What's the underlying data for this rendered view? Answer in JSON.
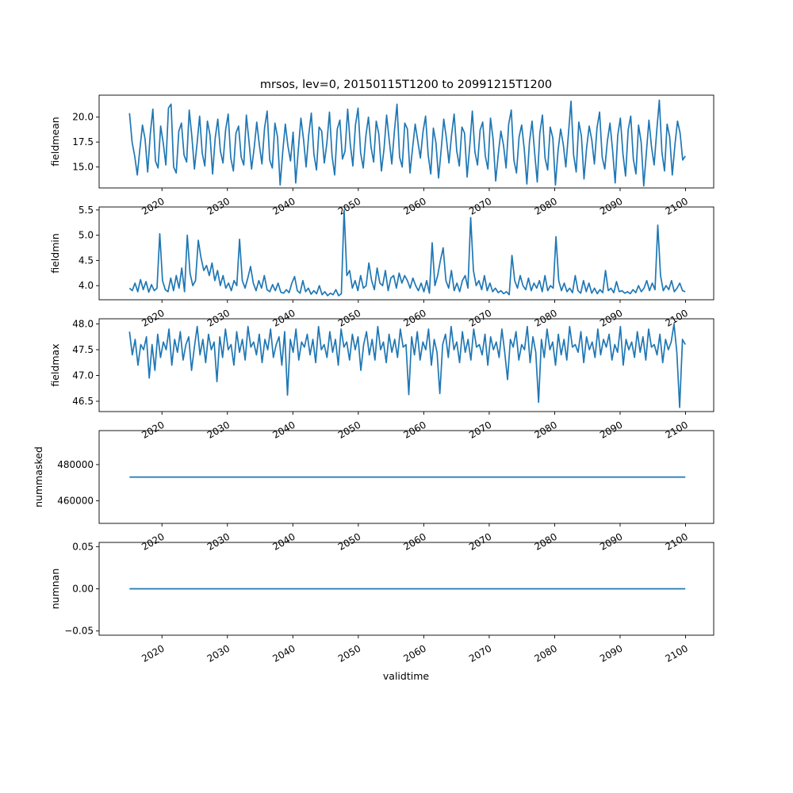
{
  "figure": {
    "title": "mrsos, lev=0, 20150115T1200 to 20991215T1200",
    "xlabel": "validtime",
    "line_color": "#1f77b4"
  },
  "chart_data": [
    {
      "type": "line",
      "ylabel": "fieldmean",
      "xlim": [
        2010.4,
        2104.3
      ],
      "ylim": [
        12.9,
        22.2
      ],
      "x_ticks": [
        2020,
        2030,
        2040,
        2050,
        2060,
        2070,
        2080,
        2090,
        2100
      ],
      "x_tick_labels": [
        "2020",
        "2030",
        "2040",
        "2050",
        "2060",
        "2070",
        "2080",
        "2090",
        "2100"
      ],
      "y_ticks": [
        15.0,
        17.5,
        20.0
      ],
      "y_tick_labels": [
        "15.0",
        "17.5",
        "20.0"
      ],
      "series": [
        {
          "x_start": 2015.04,
          "x_end": 2099.96,
          "values": [
            20.4,
            17.5,
            16.1,
            14.2,
            16.8,
            19.2,
            17.8,
            14.5,
            18.3,
            20.8,
            15.6,
            14.9,
            19.1,
            17.4,
            15.2,
            20.9,
            21.3,
            15.0,
            14.4,
            18.6,
            19.4,
            16.2,
            15.5,
            20.7,
            18.1,
            14.8,
            17.3,
            20.1,
            16.4,
            15.1,
            19.6,
            18.2,
            14.3,
            17.9,
            19.8,
            16.6,
            15.4,
            18.7,
            20.3,
            15.9,
            14.6,
            18.4,
            19.1,
            16.0,
            15.2,
            20.2,
            17.6,
            14.8,
            16.9,
            19.5,
            17.2,
            15.3,
            18.9,
            20.6,
            15.7,
            14.9,
            19.4,
            18.0,
            13.2,
            16.5,
            19.3,
            17.1,
            15.6,
            18.5,
            13.4,
            16.7,
            19.9,
            17.8,
            15.0,
            18.2,
            20.4,
            16.3,
            14.7,
            19.0,
            18.6,
            15.4,
            17.4,
            20.5,
            16.1,
            14.2,
            18.8,
            19.7,
            15.8,
            16.6,
            20.8,
            17.3,
            15.1,
            19.2,
            20.9,
            16.4,
            14.9,
            18.1,
            20.0,
            17.0,
            15.5,
            19.6,
            18.3,
            14.6,
            16.8,
            20.2,
            17.7,
            15.3,
            18.6,
            21.3,
            16.0,
            15.0,
            19.4,
            18.8,
            14.4,
            16.9,
            19.3,
            17.6,
            15.9,
            18.5,
            20.1,
            16.2,
            14.3,
            18.9,
            17.4,
            13.9,
            16.7,
            19.8,
            17.9,
            15.4,
            18.2,
            20.3,
            16.6,
            15.1,
            19.0,
            18.4,
            14.0,
            17.1,
            20.6,
            16.5,
            15.2,
            18.7,
            19.5,
            16.1,
            14.8,
            19.9,
            17.8,
            13.6,
            16.3,
            18.6,
            17.2,
            14.9,
            19.3,
            20.7,
            15.7,
            14.4,
            18.0,
            19.2,
            16.8,
            13.3,
            17.5,
            19.6,
            16.4,
            13.5,
            18.4,
            20.2,
            15.9,
            14.7,
            19.0,
            17.9,
            13.2,
            16.6,
            18.8,
            17.3,
            15.0,
            18.3,
            21.6,
            16.2,
            14.5,
            19.5,
            18.1,
            13.8,
            16.9,
            19.1,
            17.7,
            15.3,
            18.9,
            20.5,
            16.0,
            14.8,
            17.6,
            19.4,
            16.7,
            13.4,
            18.2,
            19.9,
            16.3,
            14.1,
            18.7,
            20.1,
            15.8,
            14.3,
            19.2,
            17.5,
            13.1,
            16.4,
            19.7,
            17.0,
            15.2,
            18.6,
            21.7,
            16.5,
            14.6,
            19.3,
            18.0,
            14.2,
            17.2,
            19.6,
            18.4,
            15.7,
            16.1
          ]
        }
      ]
    },
    {
      "type": "line",
      "ylabel": "fieldmin",
      "xlim": [
        2010.4,
        2104.3
      ],
      "ylim": [
        3.72,
        5.56
      ],
      "x_ticks": [
        2020,
        2030,
        2040,
        2050,
        2060,
        2070,
        2080,
        2090,
        2100
      ],
      "x_tick_labels": [
        "2020",
        "2030",
        "2040",
        "2050",
        "2060",
        "2070",
        "2080",
        "2090",
        "2100"
      ],
      "y_ticks": [
        4.0,
        4.5,
        5.0,
        5.5
      ],
      "y_tick_labels": [
        "4.0",
        "4.5",
        "5.0",
        "5.5"
      ],
      "series": [
        {
          "x_start": 2015.04,
          "x_end": 2099.96,
          "values": [
            3.95,
            3.9,
            4.05,
            3.88,
            4.12,
            3.92,
            4.08,
            3.87,
            4.02,
            3.9,
            3.95,
            5.03,
            4.1,
            3.92,
            3.88,
            4.15,
            3.9,
            4.2,
            3.95,
            4.35,
            3.88,
            5.0,
            4.25,
            4.0,
            4.1,
            4.9,
            4.55,
            4.3,
            4.4,
            4.2,
            4.45,
            4.1,
            4.3,
            4.0,
            4.2,
            3.95,
            4.05,
            3.9,
            4.1,
            4.0,
            4.92,
            4.1,
            3.95,
            4.15,
            4.38,
            4.05,
            3.9,
            4.1,
            3.95,
            4.2,
            3.92,
            3.88,
            4.02,
            3.9,
            4.05,
            3.87,
            3.85,
            3.92,
            3.86,
            4.05,
            4.18,
            3.9,
            3.85,
            4.1,
            3.88,
            3.95,
            3.83,
            3.9,
            3.84,
            4.0,
            3.82,
            3.88,
            3.8,
            3.85,
            3.82,
            3.92,
            3.8,
            3.84,
            5.5,
            4.2,
            4.3,
            3.95,
            4.1,
            3.9,
            4.2,
            3.95,
            4.0,
            4.45,
            4.1,
            3.92,
            4.35,
            4.05,
            4.0,
            4.3,
            3.9,
            4.15,
            4.2,
            3.95,
            4.25,
            4.05,
            4.2,
            4.1,
            3.95,
            4.15,
            4.0,
            3.9,
            4.05,
            3.88,
            4.1,
            3.85,
            4.85,
            4.0,
            4.2,
            4.5,
            4.75,
            4.1,
            3.95,
            4.3,
            3.9,
            4.05,
            3.88,
            4.1,
            4.2,
            3.95,
            5.35,
            4.3,
            4.0,
            4.1,
            3.92,
            4.2,
            3.9,
            4.05,
            3.88,
            3.95,
            3.86,
            3.9,
            3.84,
            3.88,
            3.82,
            4.6,
            4.1,
            3.95,
            4.2,
            4.0,
            3.92,
            4.15,
            3.9,
            4.05,
            3.95,
            4.1,
            3.88,
            4.2,
            3.9,
            4.0,
            3.95,
            4.97,
            4.1,
            3.9,
            4.05,
            3.88,
            3.95,
            3.86,
            4.2,
            3.9,
            3.85,
            4.1,
            3.88,
            4.05,
            3.85,
            3.95,
            3.84,
            3.92,
            3.86,
            4.3,
            3.9,
            3.95,
            3.86,
            4.08,
            3.88,
            3.9,
            3.85,
            3.88,
            3.84,
            3.92,
            3.86,
            4.0,
            3.88,
            3.95,
            4.1,
            3.9,
            4.05,
            3.92,
            5.2,
            4.2,
            3.9,
            4.0,
            3.92,
            4.1,
            3.88,
            3.95,
            4.05,
            3.9,
            3.88
          ]
        }
      ]
    },
    {
      "type": "line",
      "ylabel": "fieldmax",
      "xlim": [
        2010.4,
        2104.3
      ],
      "ylim": [
        46.3,
        48.1
      ],
      "x_ticks": [
        2020,
        2030,
        2040,
        2050,
        2060,
        2070,
        2080,
        2090,
        2100
      ],
      "x_tick_labels": [
        "2020",
        "2030",
        "2040",
        "2050",
        "2060",
        "2070",
        "2080",
        "2090",
        "2100"
      ],
      "y_ticks": [
        46.5,
        47.0,
        47.5,
        48.0
      ],
      "y_tick_labels": [
        "46.5",
        "47.0",
        "47.5",
        "48.0"
      ],
      "series": [
        {
          "x_start": 2015.04,
          "x_end": 2099.96,
          "values": [
            47.85,
            47.4,
            47.7,
            47.2,
            47.6,
            47.5,
            47.75,
            46.95,
            47.6,
            47.1,
            47.8,
            47.35,
            47.65,
            47.5,
            47.9,
            47.2,
            47.7,
            47.45,
            47.85,
            47.3,
            47.6,
            47.75,
            47.1,
            47.55,
            47.95,
            47.4,
            47.7,
            47.25,
            47.8,
            47.5,
            47.65,
            46.88,
            47.75,
            47.35,
            47.9,
            47.5,
            47.6,
            47.2,
            47.85,
            47.45,
            47.7,
            47.3,
            47.95,
            47.55,
            47.65,
            47.4,
            47.8,
            47.25,
            47.7,
            47.5,
            47.9,
            47.35,
            47.6,
            47.75,
            47.2,
            47.85,
            46.62,
            47.7,
            47.45,
            47.9,
            47.3,
            47.65,
            47.55,
            47.8,
            47.4,
            47.7,
            47.25,
            47.95,
            47.5,
            47.6,
            47.35,
            47.85,
            47.45,
            47.7,
            47.2,
            47.9,
            47.55,
            47.65,
            47.3,
            47.8,
            47.5,
            47.75,
            47.1,
            47.6,
            47.85,
            47.4,
            47.7,
            47.3,
            47.95,
            47.5,
            47.65,
            47.25,
            47.8,
            47.45,
            47.7,
            47.35,
            47.9,
            47.55,
            47.6,
            46.63,
            47.75,
            47.4,
            47.85,
            47.3,
            47.65,
            47.5,
            47.9,
            47.2,
            47.7,
            47.45,
            46.65,
            47.6,
            47.8,
            47.35,
            47.95,
            47.5,
            47.65,
            47.25,
            47.85,
            47.45,
            47.7,
            47.3,
            47.9,
            47.55,
            47.6,
            47.4,
            47.8,
            47.2,
            47.75,
            47.5,
            47.65,
            47.35,
            47.9,
            47.45,
            46.92,
            47.7,
            47.55,
            47.85,
            47.3,
            47.6,
            47.5,
            47.95,
            47.25,
            47.75,
            47.45,
            46.48,
            47.7,
            47.35,
            47.9,
            47.5,
            47.65,
            47.2,
            47.8,
            47.4,
            47.7,
            47.3,
            47.95,
            47.55,
            47.6,
            47.45,
            47.85,
            47.25,
            47.75,
            47.5,
            47.65,
            47.35,
            47.9,
            47.4,
            47.7,
            47.55,
            47.8,
            47.3,
            47.6,
            47.45,
            47.95,
            47.2,
            47.7,
            47.5,
            47.65,
            47.35,
            47.85,
            47.45,
            47.75,
            47.3,
            47.9,
            47.55,
            47.6,
            47.4,
            47.8,
            47.25,
            47.7,
            47.5,
            47.65,
            48.0,
            47.45,
            46.38,
            47.7,
            47.6
          ]
        }
      ]
    },
    {
      "type": "line",
      "ylabel": "nummasked",
      "xlim": [
        2010.4,
        2104.3
      ],
      "ylim": [
        447500,
        498800
      ],
      "x_ticks": [
        2020,
        2030,
        2040,
        2050,
        2060,
        2070,
        2080,
        2090,
        2100
      ],
      "x_tick_labels": [
        "2020",
        "2030",
        "2040",
        "2050",
        "2060",
        "2070",
        "2080",
        "2090",
        "2100"
      ],
      "y_ticks": [
        460000,
        480000
      ],
      "y_tick_labels": [
        "460000",
        "480000"
      ],
      "series": [
        {
          "x_start": 2015.04,
          "x_end": 2099.96,
          "values": [
            473100,
            473100
          ]
        }
      ]
    },
    {
      "type": "line",
      "ylabel": "numnan",
      "xlim": [
        2010.4,
        2104.3
      ],
      "ylim": [
        -0.055,
        0.055
      ],
      "x_ticks": [
        2020,
        2030,
        2040,
        2050,
        2060,
        2070,
        2080,
        2090,
        2100
      ],
      "x_tick_labels": [
        "2020",
        "2030",
        "2040",
        "2050",
        "2060",
        "2070",
        "2080",
        "2090",
        "2100"
      ],
      "y_ticks": [
        -0.05,
        0.0,
        0.05
      ],
      "y_tick_labels": [
        "−0.05",
        "0.00",
        "0.05"
      ],
      "series": [
        {
          "x_start": 2015.04,
          "x_end": 2099.96,
          "values": [
            0,
            0
          ]
        }
      ]
    }
  ]
}
